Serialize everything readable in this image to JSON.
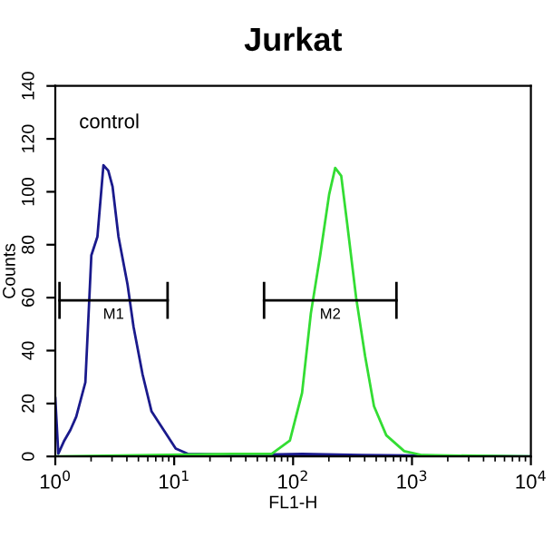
{
  "chart_data": {
    "type": "line",
    "title": "Jurkat",
    "xlabel": "FL1-H",
    "ylabel": "Counts",
    "log": "x",
    "xlim": [
      1,
      10000
    ],
    "xticks": [
      {
        "value": 1,
        "label": "10$^{0}$"
      },
      {
        "value": 10,
        "label": "10$^{1}$"
      },
      {
        "value": 100,
        "label": "10$^{2}$"
      },
      {
        "value": 1000,
        "label": "10$^{3}$"
      },
      {
        "value": 10000,
        "label": "10$^{4}$"
      }
    ],
    "ylim": [
      0,
      140
    ],
    "yticks": [
      0,
      20,
      40,
      60,
      80,
      100,
      120,
      140
    ],
    "grid": false,
    "legend": false,
    "series": [
      {
        "color": "#1a1a8c",
        "x": [
          1.0,
          1.06,
          1.19,
          1.34,
          1.5,
          1.79,
          2.01,
          2.26,
          2.54,
          2.79,
          3.03,
          3.4,
          4.05,
          4.55,
          5.42,
          6.45,
          8.15,
          10.3,
          13,
          37,
          119,
          380,
          10000
        ],
        "values": [
          22,
          1,
          6,
          10,
          15,
          28,
          76,
          83,
          110,
          108,
          102,
          83,
          65,
          49,
          31,
          17,
          10,
          3,
          1,
          0.5,
          1,
          0.5,
          0
        ]
      },
      {
        "color": "#33dd33",
        "x": [
          1,
          37,
          66,
          94,
          119,
          141,
          169,
          201,
          226,
          254,
          285,
          339,
          403,
          479,
          608,
          861,
          1220,
          10000
        ],
        "values": [
          0,
          1,
          1,
          6,
          24,
          54,
          76,
          99,
          109,
          106,
          88,
          60,
          38,
          19,
          8,
          2,
          0.5,
          0
        ]
      },
      {
        "name": "M1",
        "color": "#000000",
        "x": [
          1.085,
          8.8
        ],
        "values": [
          59,
          59
        ],
        "errors": [
          7,
          7
        ]
      },
      {
        "name": "M2",
        "color": "#000000",
        "x": [
          57,
          740
        ],
        "values": [
          59,
          59
        ],
        "errors": [
          7,
          7
        ]
      }
    ],
    "annotations": [
      "control"
    ]
  }
}
